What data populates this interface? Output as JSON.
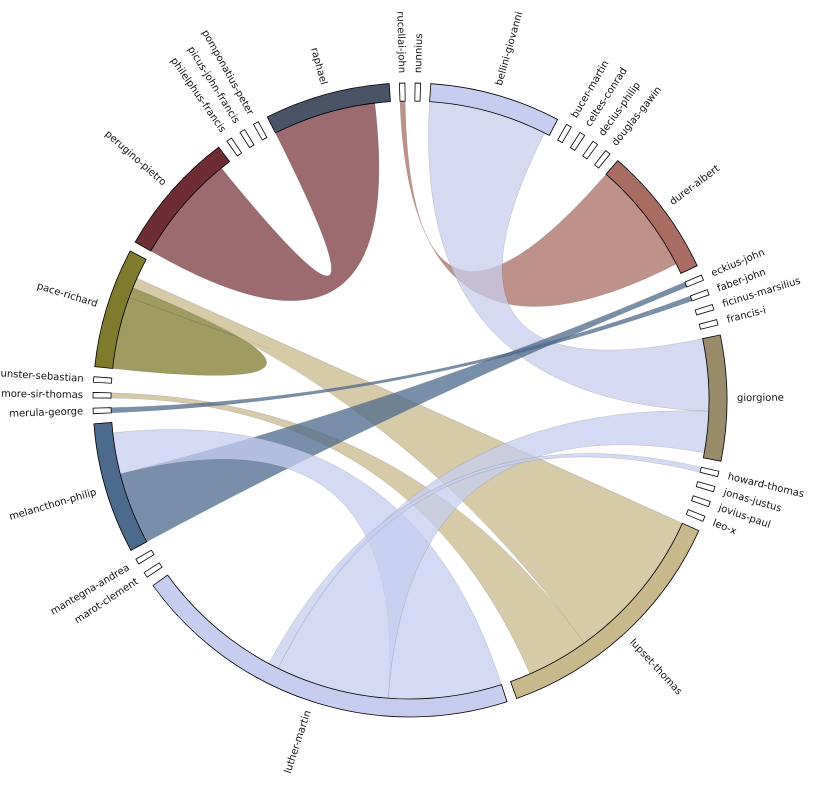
{
  "chart_data": {
    "type": "chord",
    "groups": [
      {
        "name": "nunnius",
        "value": 1,
        "color": "#ffffff"
      },
      {
        "name": "bellini-giovanni",
        "value": 24,
        "color": "#c7cdee"
      },
      {
        "name": "bucer-martin",
        "value": 1,
        "color": "#ffffff"
      },
      {
        "name": "celtes-conrad",
        "value": 1,
        "color": "#ffffff"
      },
      {
        "name": "decius-philip",
        "value": 1,
        "color": "#ffffff"
      },
      {
        "name": "douglas-gawin",
        "value": 1,
        "color": "#ffffff"
      },
      {
        "name": "durer-albert",
        "value": 24,
        "color": "#a86c62"
      },
      {
        "name": "eckius-john",
        "value": 1,
        "color": "#ffffff"
      },
      {
        "name": "faber-john",
        "value": 1,
        "color": "#ffffff"
      },
      {
        "name": "ficinus-marsilius",
        "value": 1,
        "color": "#ffffff"
      },
      {
        "name": "francis-i",
        "value": 1,
        "color": "#ffffff"
      },
      {
        "name": "giorgione",
        "value": 23,
        "color": "#9a8b6a"
      },
      {
        "name": "howard-thomas",
        "value": 1,
        "color": "#ffffff"
      },
      {
        "name": "jonas-justus",
        "value": 1,
        "color": "#ffffff"
      },
      {
        "name": "jovius-paul",
        "value": 1,
        "color": "#ffffff"
      },
      {
        "name": "leo-x",
        "value": 1,
        "color": "#ffffff"
      },
      {
        "name": "lupset-thomas",
        "value": 46,
        "color": "#c8b88c"
      },
      {
        "name": "luther-martin",
        "value": 72,
        "color": "#c6cdef"
      },
      {
        "name": "marot-clement",
        "value": 1,
        "color": "#ffffff"
      },
      {
        "name": "mantegna-andrea",
        "value": 1,
        "color": "#ffffff"
      },
      {
        "name": "melancthon-philip",
        "value": 24,
        "color": "#4b6a8c"
      },
      {
        "name": "merula-george",
        "value": 1,
        "color": "#ffffff"
      },
      {
        "name": "more-sir-thomas",
        "value": 1,
        "color": "#ffffff"
      },
      {
        "name": "munster-sebastian",
        "value": 1,
        "color": "#ffffff"
      },
      {
        "name": "pace-richard",
        "value": 22,
        "color": "#7f7a2c"
      },
      {
        "name": "perugino-pietro",
        "value": 23,
        "color": "#6e2d33"
      },
      {
        "name": "philelphus-francis",
        "value": 1,
        "color": "#ffffff"
      },
      {
        "name": "picus-john-francis",
        "value": 1,
        "color": "#ffffff"
      },
      {
        "name": "pomponatius-peter",
        "value": 1,
        "color": "#ffffff"
      },
      {
        "name": "raphael",
        "value": 23,
        "color": "#4a5468"
      },
      {
        "name": "rucellai-john",
        "value": 1,
        "color": "#ffffff"
      }
    ],
    "chords": [
      {
        "source": "raphael",
        "source_value": 20,
        "target": "perugino-pietro",
        "target_value": 21,
        "color": "#7a3a40"
      },
      {
        "source": "rucellai-john",
        "source_value": 1,
        "target": "durer-albert",
        "target_value": 22,
        "color": "#a86c62"
      },
      {
        "source": "bellini-giovanni",
        "source_value": 23,
        "target": "giorgione",
        "target_value": 14,
        "color": "#c7cdee"
      },
      {
        "source": "pace-richard",
        "source_value": 14,
        "target": "pace-richard",
        "target_value": 2,
        "color": "#7f7a2c"
      },
      {
        "source": "pace-richard",
        "source_value": 2,
        "target": "lupset-thomas",
        "target_value": 30,
        "color": "#c8b88c"
      },
      {
        "source": "more-sir-thomas",
        "source_value": 1,
        "target": "lupset-thomas",
        "target_value": 12,
        "color": "#c8b88c"
      },
      {
        "source": "melancthon-philip",
        "source_value": 14,
        "target": "eckius-john",
        "target_value": 1,
        "color": "#4b6a8c"
      },
      {
        "source": "luther-martin",
        "source_value": 22,
        "target": "melancthon-philip",
        "target_value": 8,
        "color": "#c6cdef"
      },
      {
        "source": "luther-martin",
        "source_value": 22,
        "target": "giorgione",
        "target_value": 8,
        "color": "#c6cdef"
      },
      {
        "source": "luther-martin",
        "source_value": 2,
        "target": "howard-thomas",
        "target_value": 1,
        "color": "#c6cdef"
      },
      {
        "source": "merula-george",
        "source_value": 1,
        "target": "faber-john",
        "target_value": 1,
        "color": "#4b6a8c"
      }
    ]
  }
}
